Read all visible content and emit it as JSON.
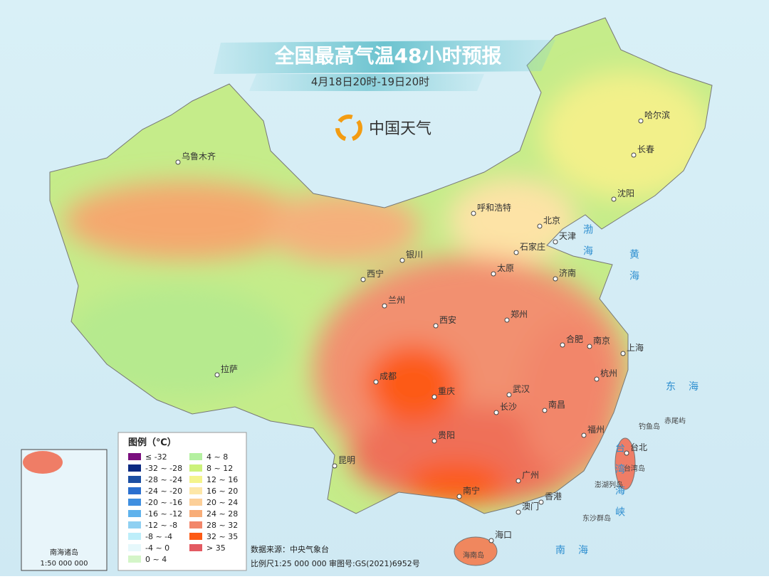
{
  "header": {
    "title": "全国最高气温48小时预报",
    "subtitle": "4月18日20时-19日20时",
    "logo": "中国天气"
  },
  "cities": [
    "乌鲁木齐",
    "哈尔滨",
    "长春",
    "沈阳",
    "呼和浩特",
    "北京",
    "天津",
    "石家庄",
    "太原",
    "济南",
    "银川",
    "西宁",
    "兰州",
    "西安",
    "郑州",
    "合肥",
    "南京",
    "上海",
    "杭州",
    "武汉",
    "成都",
    "重庆",
    "长沙",
    "南昌",
    "福州",
    "台北",
    "贵阳",
    "昆明",
    "广州",
    "香港",
    "澳门",
    "南宁",
    "海口",
    "拉萨"
  ],
  "seas": [
    "渤海",
    "黄海",
    "东海",
    "南海",
    "台湾海峡"
  ],
  "islands": [
    "钓鱼岛",
    "赤尾屿",
    "澎湖列岛",
    "东沙群岛",
    "台湾岛",
    "海南岛"
  ],
  "legend": {
    "title": "图例（℃）",
    "items": [
      {
        "label": "≤ -32",
        "color": "#7a0f7e"
      },
      {
        "label": "-32 ~ -28",
        "color": "#0b2a82"
      },
      {
        "label": "-28 ~ -24",
        "color": "#1c4fa3"
      },
      {
        "label": "-24 ~ -20",
        "color": "#2a6fcf"
      },
      {
        "label": "-20 ~ -16",
        "color": "#3f8fe0"
      },
      {
        "label": "-16 ~ -12",
        "color": "#5fb2ec"
      },
      {
        "label": "-12 ~ -8",
        "color": "#8fd0f2"
      },
      {
        "label": "-8 ~ -4",
        "color": "#bdeefa"
      },
      {
        "label": "-4 ~ 0",
        "color": "#e6f8fb"
      },
      {
        "label": "0 ~ 4",
        "color": "#d4f5c8"
      },
      {
        "label": "4 ~ 8",
        "color": "#b4f0a0"
      },
      {
        "label": "8 ~ 12",
        "color": "#ccf27a"
      },
      {
        "label": "12 ~ 16",
        "color": "#f4f48c"
      },
      {
        "label": "16 ~ 20",
        "color": "#fde7a8"
      },
      {
        "label": "20 ~ 24",
        "color": "#fccf98"
      },
      {
        "label": "24 ~ 28",
        "color": "#f8ad78"
      },
      {
        "label": "28 ~ 32",
        "color": "#f2866a"
      },
      {
        "label": "32 ~ 35",
        "color": "#fd5a14"
      },
      {
        "label": "> 35",
        "color": "#e35a62"
      }
    ]
  },
  "footer": {
    "source": "数据来源：中央气象台",
    "scale": "比例尺1:25 000 000",
    "approval": "审图号:GS(2021)6952号"
  },
  "inset": {
    "label": "南海诸岛",
    "scale": "1:50 000 000"
  }
}
